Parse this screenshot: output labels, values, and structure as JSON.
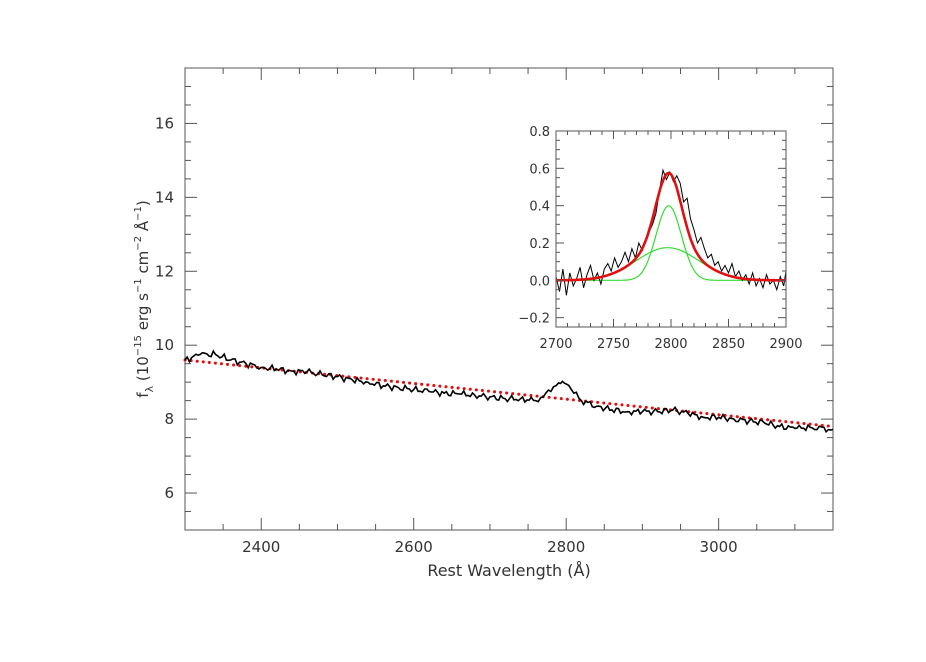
{
  "colors": {
    "spectrum": "#000000",
    "continuum_fit": "#e01010",
    "line_fit": "#e01010",
    "components": "#33dd33",
    "axes": "#555555"
  },
  "chart_data": [
    {
      "type": "line",
      "xlabel": "Rest Wavelength (Å)",
      "ylabel": "f_λ (10^-15 erg s^-1 cm^-2 Å^-1)",
      "xlim": [
        2300,
        3150
      ],
      "ylim": [
        5,
        17.5
      ],
      "x_ticks": [
        2400,
        2600,
        2800,
        3000
      ],
      "y_ticks": [
        6,
        8,
        10,
        12,
        14,
        16
      ],
      "grid": false,
      "series": [
        {
          "role": "spectrum",
          "style": "solid",
          "x": [
            2300,
            2320,
            2340,
            2360,
            2380,
            2400,
            2420,
            2440,
            2460,
            2480,
            2500,
            2520,
            2540,
            2560,
            2580,
            2600,
            2620,
            2640,
            2660,
            2680,
            2700,
            2720,
            2740,
            2760,
            2770,
            2780,
            2790,
            2795,
            2800,
            2810,
            2820,
            2840,
            2860,
            2880,
            2900,
            2920,
            2940,
            2960,
            2980,
            3000,
            3020,
            3040,
            3060,
            3080,
            3100,
            3120,
            3150
          ],
          "y": [
            9.6,
            9.75,
            9.75,
            9.6,
            9.5,
            9.4,
            9.35,
            9.3,
            9.28,
            9.2,
            9.15,
            9.05,
            9.0,
            8.9,
            8.85,
            8.8,
            8.75,
            8.7,
            8.68,
            8.65,
            8.6,
            8.55,
            8.55,
            8.5,
            8.6,
            8.75,
            8.98,
            9.02,
            8.95,
            8.7,
            8.5,
            8.35,
            8.25,
            8.2,
            8.2,
            8.2,
            8.25,
            8.15,
            8.05,
            8.05,
            8.0,
            7.95,
            7.9,
            7.8,
            7.75,
            7.78,
            7.72
          ]
        },
        {
          "role": "continuum",
          "style": "dotted",
          "x": [
            2300,
            3150
          ],
          "y": [
            9.6,
            7.8
          ]
        }
      ]
    },
    {
      "type": "line",
      "xlabel": "",
      "ylabel": "",
      "xlim": [
        2700,
        2900
      ],
      "ylim": [
        -0.25,
        0.8
      ],
      "x_ticks": [
        2700,
        2750,
        2800,
        2850,
        2900
      ],
      "y_ticks": [
        -0.2,
        0.0,
        0.2,
        0.4,
        0.6,
        0.8
      ],
      "y_tick_labels": [
        "−0.2",
        "0.0",
        "0.2",
        "0.4",
        "0.6",
        "0.8"
      ],
      "grid": false,
      "series": [
        {
          "role": "residual-spectrum",
          "style": "solid",
          "x": [
            2700,
            2703,
            2706,
            2709,
            2712,
            2715,
            2718,
            2721,
            2724,
            2727,
            2730,
            2733,
            2736,
            2739,
            2742,
            2745,
            2748,
            2751,
            2754,
            2757,
            2760,
            2763,
            2766,
            2769,
            2772,
            2775,
            2778,
            2781,
            2784,
            2787,
            2790,
            2793,
            2796,
            2799,
            2802,
            2805,
            2808,
            2811,
            2814,
            2817,
            2820,
            2823,
            2826,
            2829,
            2832,
            2835,
            2838,
            2841,
            2844,
            2847,
            2850,
            2853,
            2856,
            2859,
            2862,
            2865,
            2868,
            2871,
            2874,
            2877,
            2880,
            2883,
            2886,
            2889,
            2892,
            2895,
            2898,
            2900
          ],
          "y": [
            0.02,
            -0.06,
            0.06,
            -0.08,
            0.04,
            -0.03,
            0.01,
            0.07,
            -0.04,
            0.03,
            0.08,
            0.0,
            0.04,
            -0.02,
            0.06,
            0.09,
            0.05,
            0.12,
            0.07,
            0.1,
            0.15,
            0.1,
            0.17,
            0.12,
            0.2,
            0.16,
            0.22,
            0.26,
            0.3,
            0.36,
            0.48,
            0.59,
            0.54,
            0.58,
            0.53,
            0.56,
            0.52,
            0.42,
            0.44,
            0.33,
            0.27,
            0.2,
            0.23,
            0.17,
            0.12,
            0.14,
            0.08,
            0.1,
            0.05,
            0.08,
            0.04,
            0.09,
            0.02,
            0.05,
            0.0,
            0.03,
            -0.02,
            0.04,
            -0.03,
            0.01,
            -0.04,
            0.03,
            -0.02,
            0.0,
            -0.05,
            0.02,
            -0.03,
            0.05
          ]
        },
        {
          "role": "total-fit",
          "style": "thick",
          "model": "sum of components",
          "x": [],
          "y": []
        },
        {
          "role": "narrow-component",
          "style": "thin",
          "model": "gaussian",
          "amplitude": 0.4,
          "center": 2798,
          "sigma": 11
        },
        {
          "role": "broad-component",
          "style": "thin",
          "model": "gaussian",
          "amplitude": 0.175,
          "center": 2797,
          "sigma": 27
        }
      ]
    }
  ]
}
